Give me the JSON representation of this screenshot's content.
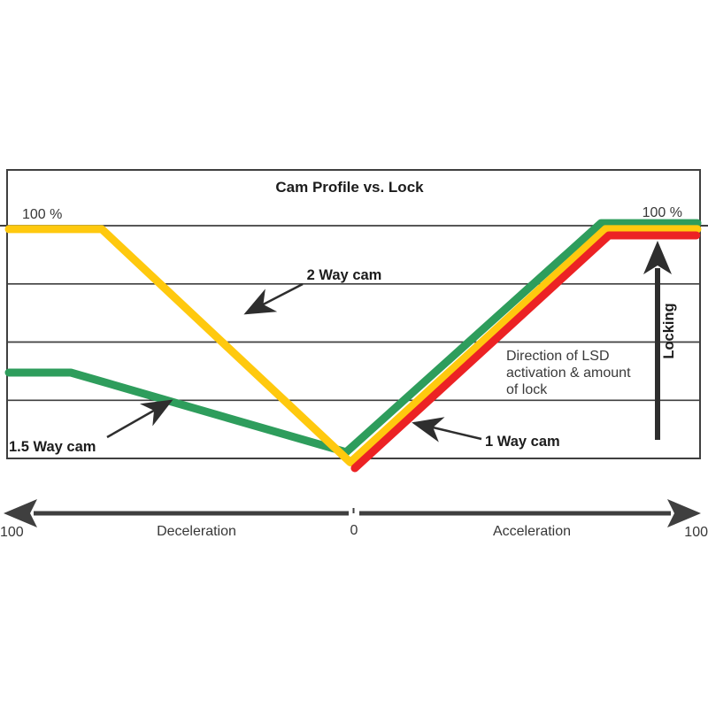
{
  "colors": {
    "axis": "#3f3f3f",
    "arrow": "#2e2e2e",
    "line_green": "#2e9d5c",
    "line_yellow": "#ffc90e",
    "line_red": "#ec2224"
  },
  "chart_data": {
    "type": "line",
    "title": "Cam Profile vs. Lock",
    "xlabel": "",
    "ylabel": "Locking",
    "xlim": [
      -100,
      100
    ],
    "ylim": [
      0,
      124
    ],
    "grid": true,
    "gridlines_pct": [
      25,
      50,
      75,
      100
    ],
    "y_axis": {
      "label": "Locking",
      "top_left_label": "100 %",
      "top_right_label": "100 %"
    },
    "x_axis": {
      "left_value": "100",
      "left_region": "Deceleration",
      "zero": "0",
      "right_region": "Acceleration",
      "right_value": "100"
    },
    "series": [
      {
        "id": "1-5-way-cam",
        "name": "1.5 Way cam",
        "color": "#2e9d5c",
        "points": [
          [
            -100,
            36.9
          ],
          [
            -82,
            36.9
          ],
          [
            -2,
            2.7
          ],
          [
            72,
            101.1
          ],
          [
            100,
            101.1
          ]
        ]
      },
      {
        "id": "2-way-cam",
        "name": "2 Way cam",
        "color": "#ffc90e",
        "points": [
          [
            -100,
            98.5
          ],
          [
            -73,
            98.5
          ],
          [
            -0.8,
            -1.7
          ],
          [
            73.3,
            98.5
          ],
          [
            100,
            98.5
          ]
        ]
      },
      {
        "id": "1-way-cam",
        "name": "1 Way cam",
        "color": "#ec2224",
        "points": [
          [
            0.5,
            -4.2
          ],
          [
            74.3,
            95.8
          ],
          [
            99.7,
            95.8
          ]
        ]
      }
    ],
    "annotations": {
      "two_way": {
        "label": "2 Way cam"
      },
      "one_five_way": {
        "label": "1.5 Way cam"
      },
      "one_way": {
        "label": "1 Way cam"
      },
      "direction": {
        "text": "Direction of LSD activation & amount of lock",
        "lines": [
          "Direction of LSD",
          "activation & amount",
          "of lock"
        ]
      }
    }
  }
}
